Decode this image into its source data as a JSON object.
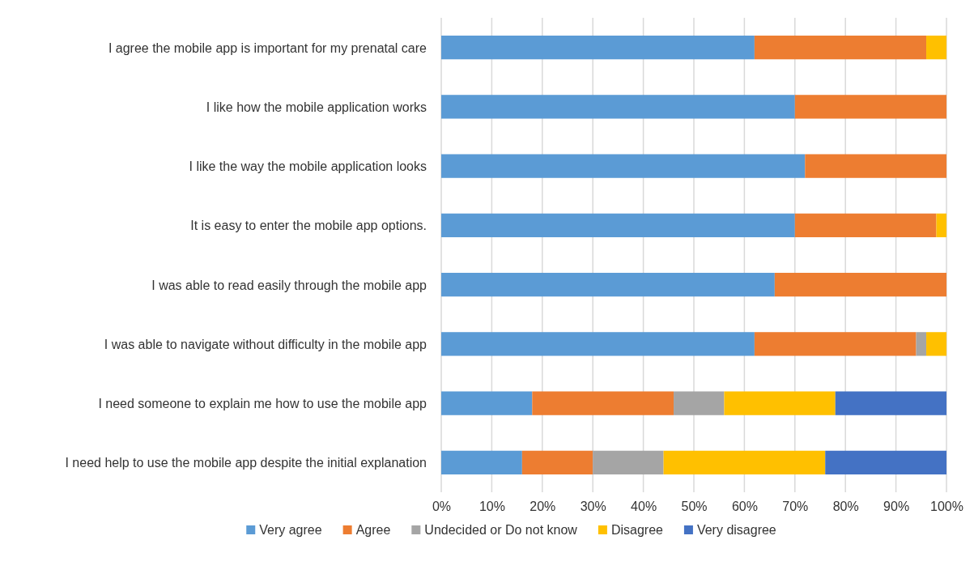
{
  "chart_data": {
    "type": "bar",
    "orientation": "horizontal",
    "stacked": true,
    "categories": [
      "I agree the mobile app is important for my prenatal care",
      "I like how the mobile application works",
      "I like the way the mobile application looks",
      "It is easy to enter the mobile app options.",
      "I was able to read easily through the mobile app",
      "I was able to navigate without difficulty in the mobile app",
      "I need someone to explain me how to use the mobile app",
      "I need help to use the mobile app despite the initial explanation"
    ],
    "series": [
      {
        "name": "Very agree",
        "color": "#5b9bd5",
        "values": [
          62,
          70,
          72,
          70,
          66,
          62,
          18,
          16
        ]
      },
      {
        "name": "Agree",
        "color": "#ed7d31",
        "values": [
          34,
          30,
          28,
          28,
          34,
          32,
          28,
          14
        ]
      },
      {
        "name": "Undecided or Do not know",
        "color": "#a5a5a5",
        "values": [
          0,
          0,
          0,
          0,
          0,
          2,
          10,
          14
        ]
      },
      {
        "name": "Disagree",
        "color": "#ffc000",
        "values": [
          4,
          0,
          0,
          2,
          0,
          4,
          22,
          32
        ]
      },
      {
        "name": "Very disagree",
        "color": "#4472c4",
        "values": [
          0,
          0,
          0,
          0,
          0,
          0,
          22,
          24
        ]
      }
    ],
    "xlim": [
      0,
      100
    ],
    "xticks": [
      {
        "value": 0,
        "label": "0%"
      },
      {
        "value": 10,
        "label": "10%"
      },
      {
        "value": 20,
        "label": "20%"
      },
      {
        "value": 30,
        "label": "30%"
      },
      {
        "value": 40,
        "label": "40%"
      },
      {
        "value": 50,
        "label": "50%"
      },
      {
        "value": 60,
        "label": "60%"
      },
      {
        "value": 70,
        "label": "70%"
      },
      {
        "value": 80,
        "label": "80%"
      },
      {
        "value": 90,
        "label": "90%"
      },
      {
        "value": 100,
        "label": "100%"
      }
    ],
    "grid": "x",
    "legend": "bottom"
  }
}
